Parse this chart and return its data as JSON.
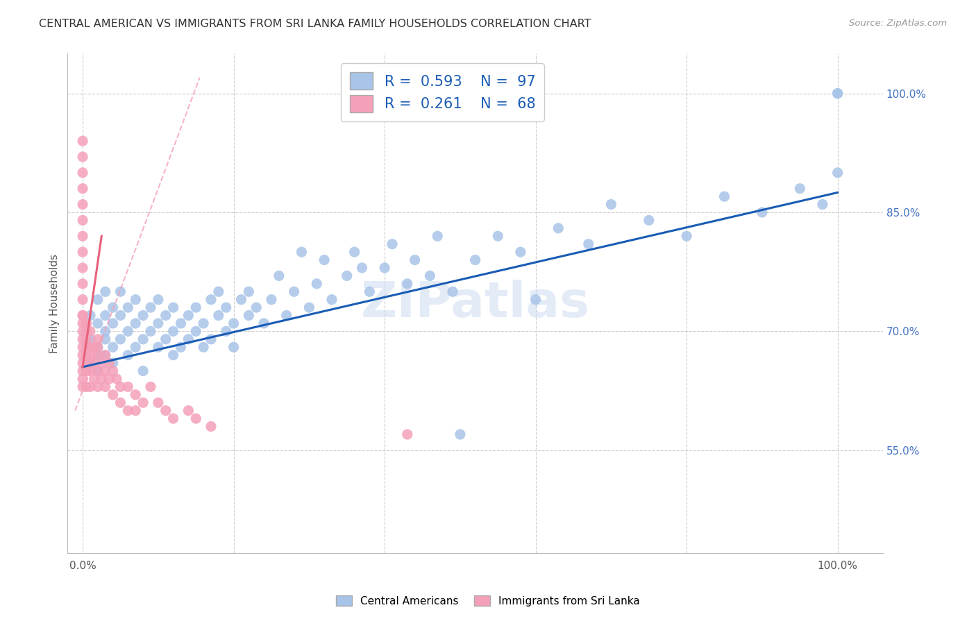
{
  "title": "CENTRAL AMERICAN VS IMMIGRANTS FROM SRI LANKA FAMILY HOUSEHOLDS CORRELATION CHART",
  "source": "Source: ZipAtlas.com",
  "ylabel": "Family Households",
  "x_tick_vals": [
    0.0,
    0.2,
    0.4,
    0.6,
    0.8,
    1.0
  ],
  "x_tick_labels": [
    "0.0%",
    "",
    "",
    "",
    "",
    "100.0%"
  ],
  "y_tick_vals_right": [
    0.55,
    0.7,
    0.85,
    1.0
  ],
  "y_tick_labels_right": [
    "55.0%",
    "70.0%",
    "85.0%",
    "100.0%"
  ],
  "xlim": [
    -0.02,
    1.06
  ],
  "ylim": [
    0.42,
    1.05
  ],
  "blue_R": "0.593",
  "blue_N": "97",
  "pink_R": "0.261",
  "pink_N": "68",
  "legend_label_blue": "Central Americans",
  "legend_label_pink": "Immigrants from Sri Lanka",
  "watermark": "ZIPatlas",
  "blue_color": "#a8c4e8",
  "pink_color": "#f4a0b8",
  "blue_line_color": "#1a5cb5",
  "pink_line_color": "#e8607a",
  "pink_dash_color": "#f4a0b8",
  "grid_color": "#cccccc",
  "title_color": "#333333",
  "right_tick_color": "#4472c4",
  "scatter_blue": {
    "x": [
      0.01,
      0.01,
      0.01,
      0.02,
      0.02,
      0.02,
      0.02,
      0.02,
      0.03,
      0.03,
      0.03,
      0.03,
      0.03,
      0.04,
      0.04,
      0.04,
      0.04,
      0.05,
      0.05,
      0.05,
      0.06,
      0.06,
      0.06,
      0.07,
      0.07,
      0.07,
      0.08,
      0.08,
      0.08,
      0.09,
      0.09,
      0.1,
      0.1,
      0.1,
      0.11,
      0.11,
      0.12,
      0.12,
      0.12,
      0.13,
      0.13,
      0.14,
      0.14,
      0.15,
      0.15,
      0.16,
      0.16,
      0.17,
      0.17,
      0.18,
      0.18,
      0.19,
      0.19,
      0.2,
      0.2,
      0.21,
      0.22,
      0.22,
      0.23,
      0.24,
      0.25,
      0.26,
      0.27,
      0.28,
      0.29,
      0.3,
      0.31,
      0.32,
      0.33,
      0.35,
      0.36,
      0.37,
      0.38,
      0.4,
      0.41,
      0.43,
      0.44,
      0.46,
      0.47,
      0.49,
      0.5,
      0.52,
      0.55,
      0.58,
      0.6,
      0.63,
      0.67,
      0.7,
      0.75,
      0.8,
      0.85,
      0.9,
      0.95,
      0.98,
      1.0,
      1.0,
      1.0
    ],
    "y": [
      0.69,
      0.72,
      0.66,
      0.68,
      0.71,
      0.74,
      0.67,
      0.65,
      0.69,
      0.72,
      0.75,
      0.67,
      0.7,
      0.68,
      0.71,
      0.73,
      0.66,
      0.69,
      0.72,
      0.75,
      0.67,
      0.7,
      0.73,
      0.68,
      0.71,
      0.74,
      0.69,
      0.72,
      0.65,
      0.7,
      0.73,
      0.68,
      0.71,
      0.74,
      0.69,
      0.72,
      0.67,
      0.7,
      0.73,
      0.68,
      0.71,
      0.69,
      0.72,
      0.7,
      0.73,
      0.68,
      0.71,
      0.74,
      0.69,
      0.72,
      0.75,
      0.7,
      0.73,
      0.68,
      0.71,
      0.74,
      0.72,
      0.75,
      0.73,
      0.71,
      0.74,
      0.77,
      0.72,
      0.75,
      0.8,
      0.73,
      0.76,
      0.79,
      0.74,
      0.77,
      0.8,
      0.78,
      0.75,
      0.78,
      0.81,
      0.76,
      0.79,
      0.77,
      0.82,
      0.75,
      0.57,
      0.79,
      0.82,
      0.8,
      0.74,
      0.83,
      0.81,
      0.86,
      0.84,
      0.82,
      0.87,
      0.85,
      0.88,
      0.86,
      1.0,
      0.9,
      1.0
    ]
  },
  "scatter_pink": {
    "x": [
      0.0,
      0.0,
      0.0,
      0.0,
      0.0,
      0.0,
      0.0,
      0.0,
      0.0,
      0.0,
      0.0,
      0.0,
      0.0,
      0.0,
      0.0,
      0.0,
      0.0,
      0.0,
      0.0,
      0.0,
      0.0,
      0.0,
      0.005,
      0.005,
      0.005,
      0.005,
      0.005,
      0.005,
      0.005,
      0.01,
      0.01,
      0.01,
      0.01,
      0.01,
      0.01,
      0.015,
      0.015,
      0.015,
      0.02,
      0.02,
      0.02,
      0.02,
      0.02,
      0.025,
      0.025,
      0.03,
      0.03,
      0.03,
      0.035,
      0.035,
      0.04,
      0.04,
      0.045,
      0.05,
      0.05,
      0.06,
      0.06,
      0.07,
      0.07,
      0.08,
      0.09,
      0.1,
      0.11,
      0.12,
      0.14,
      0.15,
      0.17,
      0.43
    ],
    "y": [
      0.94,
      0.92,
      0.9,
      0.88,
      0.86,
      0.84,
      0.82,
      0.8,
      0.78,
      0.76,
      0.74,
      0.72,
      0.71,
      0.69,
      0.67,
      0.65,
      0.68,
      0.7,
      0.63,
      0.72,
      0.66,
      0.64,
      0.71,
      0.69,
      0.67,
      0.65,
      0.68,
      0.63,
      0.7,
      0.68,
      0.66,
      0.7,
      0.63,
      0.65,
      0.67,
      0.66,
      0.64,
      0.68,
      0.69,
      0.67,
      0.63,
      0.65,
      0.68,
      0.66,
      0.64,
      0.65,
      0.67,
      0.63,
      0.64,
      0.66,
      0.65,
      0.62,
      0.64,
      0.63,
      0.61,
      0.63,
      0.6,
      0.62,
      0.6,
      0.61,
      0.63,
      0.61,
      0.6,
      0.59,
      0.6,
      0.59,
      0.58,
      0.57
    ]
  },
  "blue_line": {
    "x0": 0.0,
    "x1": 1.0,
    "y0": 0.655,
    "y1": 0.875
  },
  "pink_line": {
    "x0": 0.0,
    "x1": 0.025,
    "y0": 0.655,
    "y1": 0.82
  },
  "pink_dash_line": {
    "x0": -0.01,
    "x1": 0.155,
    "y0": 0.6,
    "y1": 1.02
  }
}
